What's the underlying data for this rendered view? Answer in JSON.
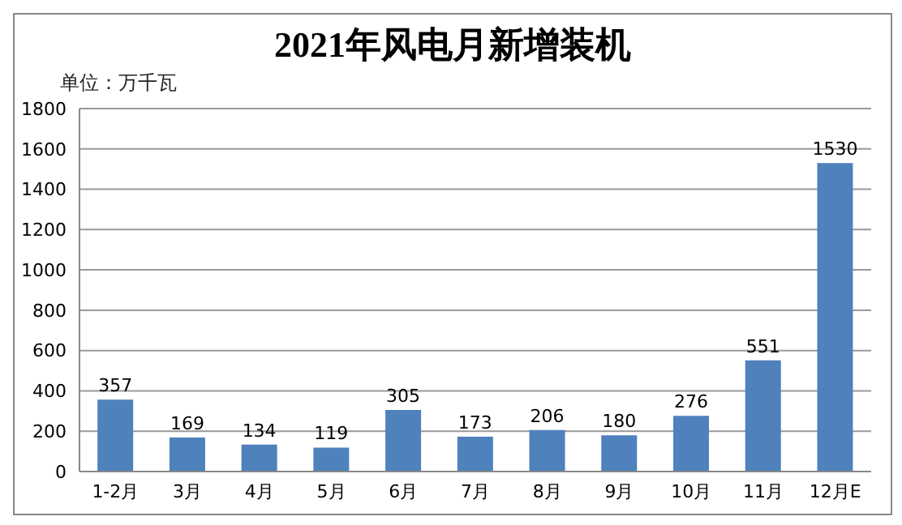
{
  "chart_data": {
    "type": "bar",
    "title": "2021年风电月新增装机",
    "annotations": [
      "单位：万千瓦"
    ],
    "categories": [
      "1-2月",
      "3月",
      "4月",
      "5月",
      "6月",
      "7月",
      "8月",
      "9月",
      "10月",
      "11月",
      "12月E"
    ],
    "values": [
      357,
      169,
      134,
      119,
      305,
      173,
      206,
      180,
      276,
      551,
      1530
    ],
    "color": "#4f81bd",
    "data_labels": true,
    "ylim": [
      0,
      1800
    ],
    "yticks": [
      0,
      200,
      400,
      600,
      800,
      1000,
      1200,
      1400,
      1600,
      1800
    ],
    "grid": "y"
  }
}
